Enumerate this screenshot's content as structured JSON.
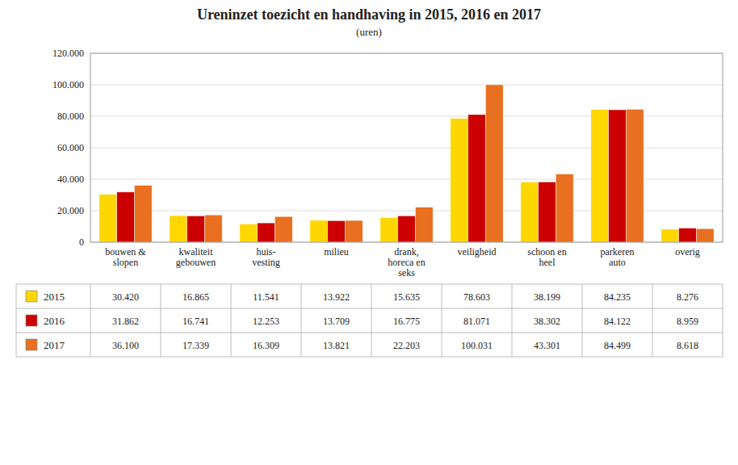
{
  "chart_data": {
    "type": "bar",
    "title": "Ureninzet toezicht en handhaving in 2015, 2016 en 2017",
    "subtitle": "(uren)",
    "categories": [
      "bouwen &\nslopen",
      "kwaliteit\ngebouwen",
      "huis-\nvesting",
      "milieu",
      "drank,\nhoreca en\nseks",
      "veiligheid",
      "schoon en\nheel",
      "parkeren\nauto",
      "overig"
    ],
    "series": [
      {
        "name": "2015",
        "color": "#FFD700",
        "values": [
          30420,
          16865,
          11541,
          13922,
          15635,
          78603,
          38199,
          84235,
          8276
        ],
        "value_labels": [
          "30.420",
          "16.865",
          "11.541",
          "13.922",
          "15.635",
          "78.603",
          "38.199",
          "84.235",
          "8.276"
        ]
      },
      {
        "name": "2016",
        "color": "#CC0000",
        "values": [
          31862,
          16741,
          12253,
          13709,
          16775,
          81071,
          38302,
          84122,
          8959
        ],
        "value_labels": [
          "31.862",
          "16.741",
          "12.253",
          "13.709",
          "16.775",
          "81.071",
          "38.302",
          "84.122",
          "8.959"
        ]
      },
      {
        "name": "2017",
        "color": "#E87020",
        "values": [
          36100,
          17339,
          16309,
          13821,
          22203,
          100031,
          43301,
          84499,
          8618
        ],
        "value_labels": [
          "36.100",
          "17.339",
          "16.309",
          "13.821",
          "22.203",
          "100.031",
          "43.301",
          "84.499",
          "8.618"
        ]
      }
    ],
    "ylim": [
      0,
      120000
    ],
    "yticks": [
      0,
      {
        "value": 20000,
        "label": "20.000"
      },
      {
        "value": 40000,
        "label": "40.000"
      },
      {
        "value": 60000,
        "label": "60.000"
      },
      {
        "value": 80000,
        "label": "80.000"
      },
      {
        "value": 100000,
        "label": "100.000"
      },
      {
        "value": 120000,
        "label": "120.000"
      }
    ],
    "grid": true
  }
}
